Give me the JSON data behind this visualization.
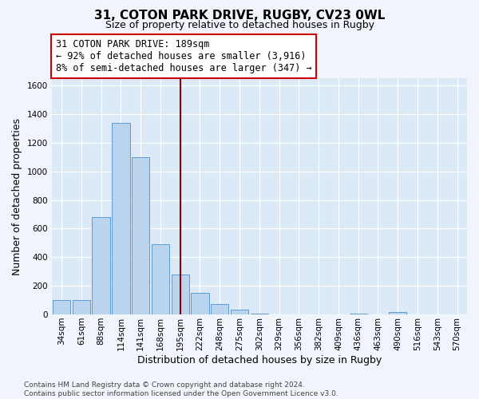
{
  "title_line1": "31, COTON PARK DRIVE, RUGBY, CV23 0WL",
  "title_line2": "Size of property relative to detached houses in Rugby",
  "xlabel": "Distribution of detached houses by size in Rugby",
  "ylabel": "Number of detached properties",
  "categories": [
    "34sqm",
    "61sqm",
    "88sqm",
    "114sqm",
    "141sqm",
    "168sqm",
    "195sqm",
    "222sqm",
    "248sqm",
    "275sqm",
    "302sqm",
    "329sqm",
    "356sqm",
    "382sqm",
    "409sqm",
    "436sqm",
    "463sqm",
    "490sqm",
    "516sqm",
    "543sqm",
    "570sqm"
  ],
  "values": [
    100,
    100,
    680,
    1340,
    1100,
    490,
    280,
    150,
    75,
    35,
    5,
    3,
    2,
    2,
    2,
    5,
    2,
    15,
    2,
    2,
    2
  ],
  "bar_color": "#bad4ee",
  "bar_edge_color": "#5b9bd5",
  "highlight_index": 6,
  "highlight_color": "#8b0000",
  "annotation_text": "31 COTON PARK DRIVE: 189sqm\n← 92% of detached houses are smaller (3,916)\n8% of semi-detached houses are larger (347) →",
  "annotation_box_color": "#ffffff",
  "annotation_box_edge": "#cc0000",
  "ylim": [
    0,
    1650
  ],
  "yticks": [
    0,
    200,
    400,
    600,
    800,
    1000,
    1200,
    1400,
    1600
  ],
  "footnote": "Contains HM Land Registry data © Crown copyright and database right 2024.\nContains public sector information licensed under the Open Government Licence v3.0.",
  "background_color": "#f0f4fb",
  "plot_bg_color": "#dce9f7",
  "grid_color": "#ffffff",
  "title_fontsize": 11,
  "subtitle_fontsize": 9,
  "axis_label_fontsize": 9,
  "tick_fontsize": 7.5,
  "annotation_fontsize": 8.5,
  "footnote_fontsize": 6.5
}
